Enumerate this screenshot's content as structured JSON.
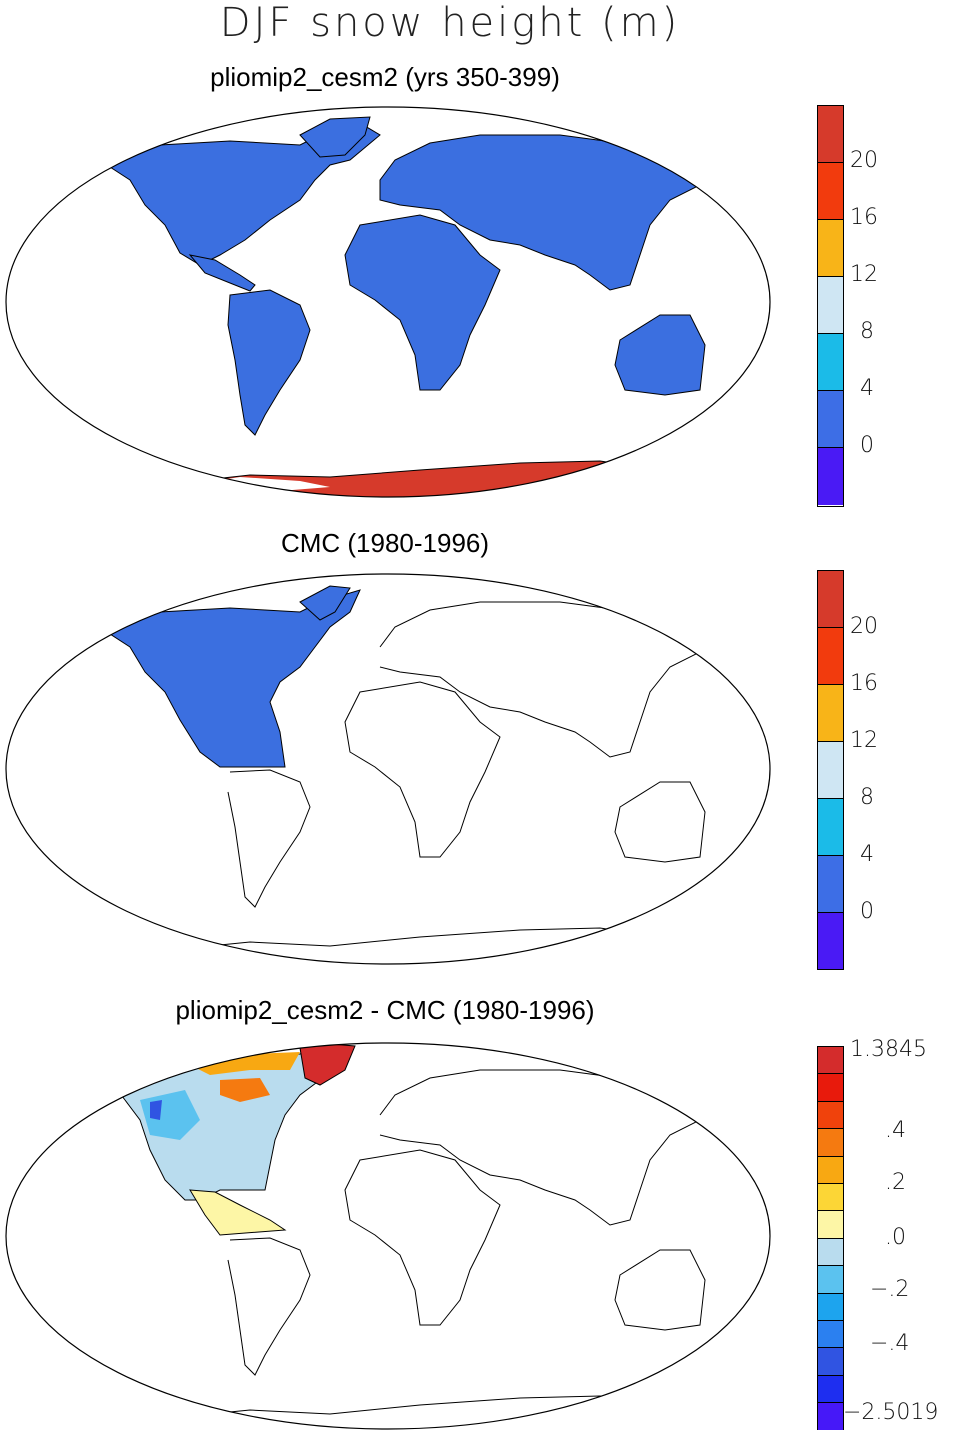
{
  "title": "DJF snow height (m)",
  "panels": [
    {
      "title": "pliomip2_cesm2 (yrs 350-399)",
      "colorbar": {
        "colors": [
          "#d63a2b",
          "#f23b0d",
          "#f8b418",
          "#cfe6f3",
          "#1bbbe8",
          "#3d6ee6",
          "#4a1af5"
        ],
        "tick_labels": [
          "20",
          "16",
          "12",
          "8",
          "4",
          "0"
        ]
      }
    },
    {
      "title": "CMC (1980-1996)",
      "colorbar": {
        "colors": [
          "#d63a2b",
          "#f23b0d",
          "#f8b418",
          "#cfe6f3",
          "#1bbbe8",
          "#3d6ee6",
          "#4a1af5"
        ],
        "tick_labels": [
          "20",
          "16",
          "12",
          "8",
          "4",
          "0"
        ]
      }
    },
    {
      "title": "pliomip2_cesm2 - CMC (1980-1996)",
      "colorbar": {
        "colors": [
          "#d42c2c",
          "#e81a0c",
          "#f0420c",
          "#f57a10",
          "#f8a812",
          "#fcd636",
          "#fdf6a6",
          "#b9dcee",
          "#5bc2ef",
          "#1da4ee",
          "#2b80f0",
          "#3054e2",
          "#1e2ef0",
          "#4618f8"
        ],
        "tick_labels": [
          "1.3845",
          ".4",
          ".2",
          ".0",
          "−.2",
          "−.4",
          "−2.5019"
        ]
      }
    }
  ],
  "colors": {
    "land_blue": "#3b6fe0",
    "antarctic_red": "#d63a2b",
    "coast_line": "#000000"
  }
}
